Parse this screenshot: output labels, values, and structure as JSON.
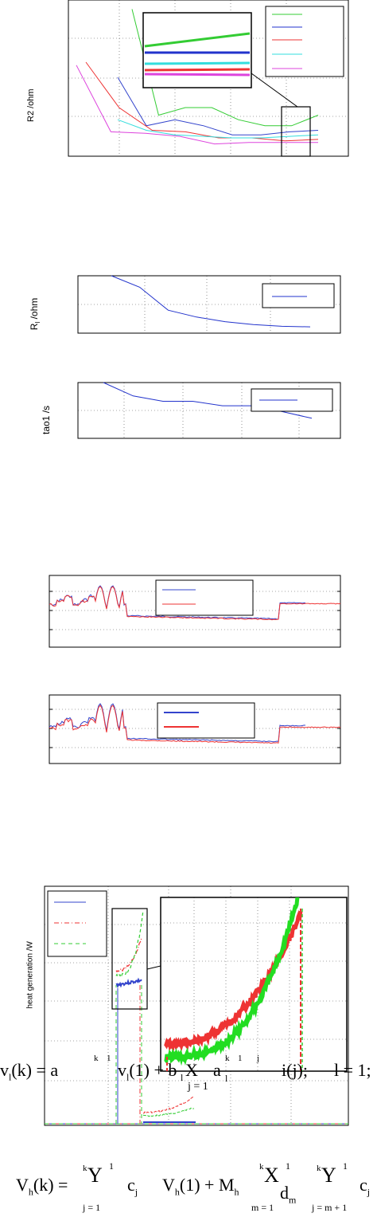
{
  "chart_data": [
    {
      "type": "line",
      "ylabel": "R2 /ohm",
      "grid": true,
      "inset_zoom": true,
      "legend_placement": "top-right",
      "series": [
        {
          "color": "#33cc33",
          "values": [
            0.95,
            0.25,
            0.3,
            0.3,
            0.22,
            0.18,
            0.18,
            0.25
          ]
        },
        {
          "color": "#3344cc",
          "values": [
            0.5,
            0.18,
            0.22,
            0.18,
            0.12,
            0.12,
            0.14,
            0.15
          ]
        },
        {
          "color": "#ee3333",
          "values": [
            0.6,
            0.3,
            0.15,
            0.14,
            0.1,
            0.1,
            0.08,
            0.09
          ]
        },
        {
          "color": "#33dddd",
          "values": [
            0.22,
            0.15,
            0.12,
            0.11,
            0.1,
            0.1,
            0.11,
            0.12
          ]
        },
        {
          "color": "#dd44dd",
          "values": [
            0.58,
            0.14,
            0.13,
            0.11,
            0.06,
            0.07,
            0.07,
            0.07
          ]
        }
      ]
    },
    {
      "type": "line",
      "ylabel": "R",
      "ylabel_sub": "l",
      "ylabel_suffix": " /ohm",
      "grid": true,
      "legend_placement": "top-right",
      "series": [
        {
          "color": "#2233cc",
          "values": [
            1.0,
            0.8,
            0.4,
            0.28,
            0.2,
            0.15,
            0.12,
            0.11
          ]
        }
      ]
    },
    {
      "type": "line",
      "ylabel": "tao1 /s",
      "grid": true,
      "legend_placement": "top-right",
      "series": [
        {
          "color": "#2233cc",
          "values": [
            1.0,
            0.7,
            0.58,
            0.58,
            0.48,
            0.48,
            0.35,
            0.2
          ]
        }
      ]
    },
    {
      "type": "line",
      "grid": true,
      "legend_placement": "top-center",
      "series": [
        {
          "color": "#3344cc"
        },
        {
          "color": "#ee3333"
        }
      ]
    },
    {
      "type": "line",
      "grid": true,
      "legend_placement": "top-center",
      "series": [
        {
          "color": "#3344cc"
        },
        {
          "color": "#ee3333"
        }
      ]
    },
    {
      "type": "line",
      "ylabel": "heat generation /W",
      "grid": true,
      "inset_zoom": true,
      "legend_placement": "top-left",
      "series": [
        {
          "color": "#3344cc"
        },
        {
          "color": "#ee3333",
          "dash": "dash-dot"
        },
        {
          "color": "#33cc33",
          "dash": "dashed"
        }
      ]
    }
  ],
  "equations": {
    "eq1": {
      "v1": "v",
      "sub1": "l",
      "arg1": "(k) = a",
      "sup1": "k",
      "sup2": "1",
      "v2": "v",
      "sub2": "l",
      "arg2": "(1) + b",
      "sub3": "l",
      "a2": "a",
      "sup3": "k",
      "sup4": "1",
      "sup5": "j",
      "sub4": "l",
      "ij": "i(j);",
      "tail": "l = 1;",
      "sum_glyph": "X",
      "sum_lower": "j = 1"
    },
    "eq2": {
      "lhs": "V",
      "lhs_sub": "h",
      "lhs_arg": "(k) =",
      "prod1_glyph": "Y",
      "prod1_top": "k",
      "prod1_sup": "1",
      "prod1_lower": "j = 1",
      "cj": "c",
      "cj_sub": "j",
      "vh": "V",
      "vh_sub": "h",
      "vh_arg": "(1) + M",
      "m_sub": "h",
      "sum_glyph": "X",
      "sum_top": "k",
      "sum_sup": "1",
      "sum_lower": "m = 1",
      "dm": "d",
      "dm_sub": "m",
      "prod2_glyph": "Y",
      "prod2_top": "k",
      "prod2_sup": "1",
      "prod2_lower": "j = m + 1",
      "cj2": "c",
      "cj2_sub": "j"
    }
  }
}
